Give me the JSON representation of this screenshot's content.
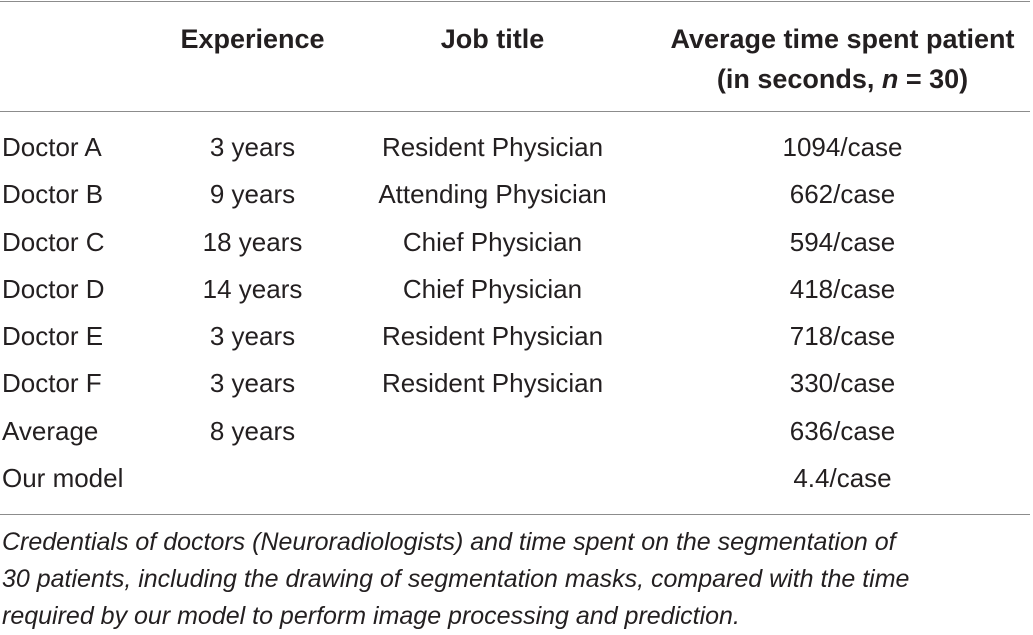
{
  "table": {
    "header": {
      "experience": "Experience",
      "job_title": "Job title",
      "avg_line1": "Average time spent patient",
      "avg_line2_pre": "(in seconds, ",
      "avg_line2_n": "n",
      "avg_line2_post": " = 30)"
    },
    "rows": [
      {
        "name": "Doctor A",
        "experience": "3 years",
        "job_title": "Resident Physician",
        "avg_time": "1094/case"
      },
      {
        "name": "Doctor B",
        "experience": "9 years",
        "job_title": "Attending Physician",
        "avg_time": "662/case"
      },
      {
        "name": "Doctor C",
        "experience": "18 years",
        "job_title": "Chief Physician",
        "avg_time": "594/case"
      },
      {
        "name": "Doctor D",
        "experience": "14 years",
        "job_title": "Chief Physician",
        "avg_time": "418/case"
      },
      {
        "name": "Doctor E",
        "experience": "3 years",
        "job_title": "Resident Physician",
        "avg_time": "718/case"
      },
      {
        "name": "Doctor F",
        "experience": "3 years",
        "job_title": "Resident Physician",
        "avg_time": "330/case"
      },
      {
        "name": "Average",
        "experience": "8 years",
        "job_title": "",
        "avg_time": "636/case"
      },
      {
        "name": "Our model",
        "experience": "",
        "job_title": "",
        "avg_time": "4.4/case"
      }
    ]
  },
  "caption": {
    "line1": "Credentials of doctors (Neuroradiologists) and time spent on the segmentation of",
    "line2": "30 patients, including the drawing of segmentation masks, compared with the time",
    "line3": "required by our model to perform image processing and prediction."
  }
}
